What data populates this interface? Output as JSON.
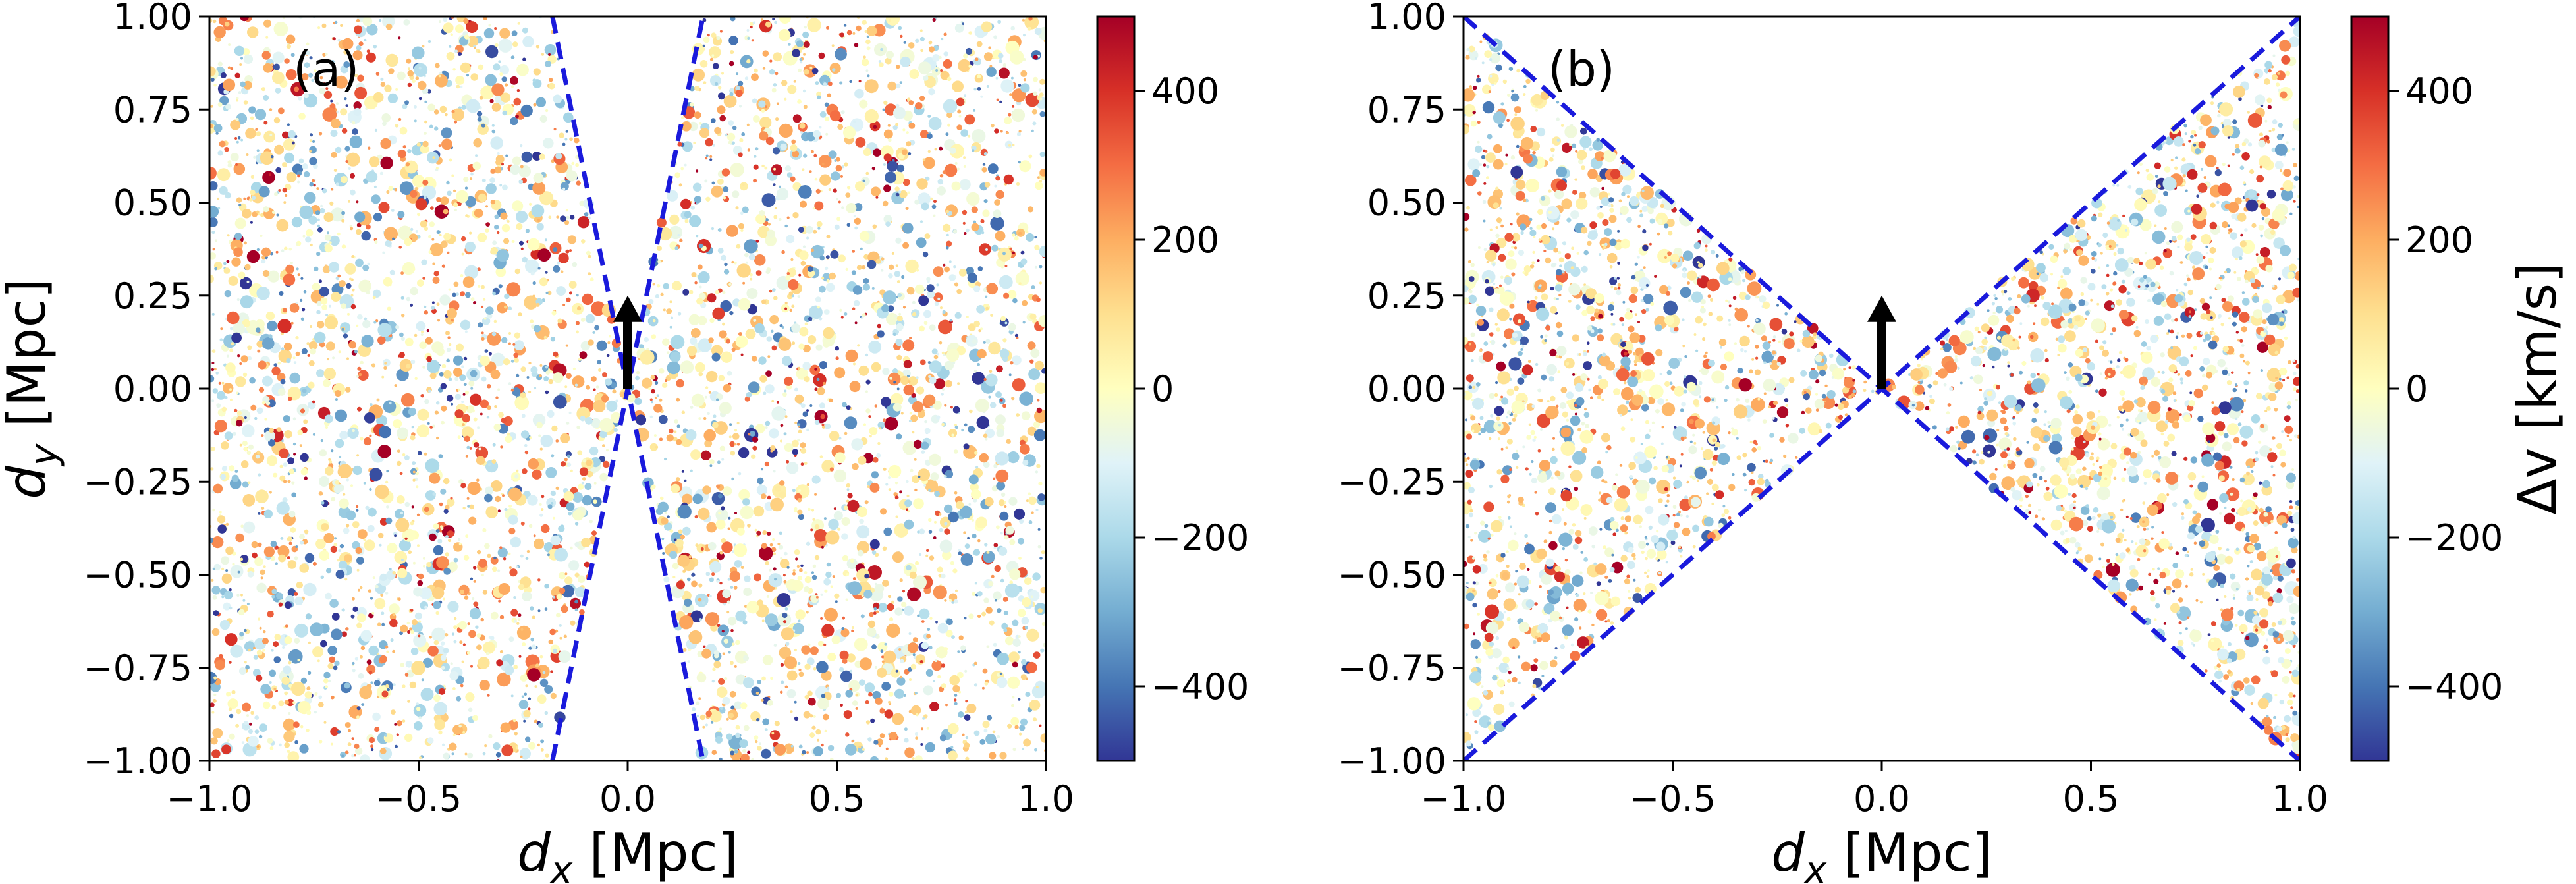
{
  "chart_data": [
    {
      "type": "scatter",
      "panel_label": "(a)",
      "xlabel_symbol": "d",
      "xlabel_sub": "x",
      "xlabel_unit": " [Mpc]",
      "ylabel_symbol": "d",
      "ylabel_sub": "y",
      "ylabel_unit": " [Mpc]",
      "xlim": [
        -1.0,
        1.0
      ],
      "ylim": [
        -1.0,
        1.0
      ],
      "xticks": [
        -1.0,
        -0.5,
        0.0,
        0.5,
        1.0
      ],
      "xtick_labels": [
        "−1.0",
        "−0.5",
        "0.0",
        "0.5",
        "1.0"
      ],
      "yticks": [
        -1.0,
        -0.75,
        -0.5,
        -0.25,
        0.0,
        0.25,
        0.5,
        0.75,
        1.0
      ],
      "ytick_labels": [
        "−1.00",
        "−0.75",
        "−0.50",
        "−0.25",
        "0.00",
        "0.25",
        "0.50",
        "0.75",
        "1.00"
      ],
      "boundary_lines": [
        {
          "x": [
            -0.18,
            0.18
          ],
          "y": [
            1.0,
            -1.0
          ],
          "style": "dashed",
          "color": "#1a1adc"
        },
        {
          "x": [
            -0.18,
            0.18
          ],
          "y": [
            -1.0,
            1.0
          ],
          "style": "dashed",
          "color": "#1a1adc"
        }
      ],
      "excluded_region": "narrow double wedge around the y-axis (|dx| < 0.18·|dy|)",
      "arrow": {
        "x": 0.0,
        "y_start": 0.0,
        "y_end": 0.25,
        "color": "#000000"
      },
      "points_note": "several thousand galaxies uniformly spread over the panel outside the wedge, coloured by Δv from −500 to 500 km/s",
      "colorbar": {
        "label": "",
        "range": [
          -500,
          500
        ],
        "ticks": [
          -400,
          -200,
          0,
          200,
          400
        ],
        "tick_labels": [
          "−400",
          "−200",
          "0",
          "200",
          "400"
        ],
        "colormap": "RdYlBu_r"
      }
    },
    {
      "type": "scatter",
      "panel_label": "(b)",
      "xlabel_symbol": "d",
      "xlabel_sub": "x",
      "xlabel_unit": " [Mpc]",
      "xlim": [
        -1.0,
        1.0
      ],
      "ylim": [
        -1.0,
        1.0
      ],
      "xticks": [
        -1.0,
        -0.5,
        0.0,
        0.5,
        1.0
      ],
      "xtick_labels": [
        "−1.0",
        "−0.5",
        "0.0",
        "0.5",
        "1.0"
      ],
      "yticks": [
        -1.0,
        -0.75,
        -0.5,
        -0.25,
        0.0,
        0.25,
        0.5,
        0.75,
        1.0
      ],
      "ytick_labels": [
        "−1.00",
        "−0.75",
        "−0.50",
        "−0.25",
        "0.00",
        "0.25",
        "0.50",
        "0.75",
        "1.00"
      ],
      "boundary_lines": [
        {
          "x": [
            -1.0,
            1.0
          ],
          "y": [
            1.0,
            -1.0
          ],
          "style": "dashed",
          "color": "#1a1adc"
        },
        {
          "x": [
            -1.0,
            1.0
          ],
          "y": [
            -1.0,
            1.0
          ],
          "style": "dashed",
          "color": "#1a1adc"
        }
      ],
      "included_region": "bow-tie wedge |dy| < |dx|",
      "arrow": {
        "x": 0.0,
        "y_start": 0.0,
        "y_end": 0.25,
        "color": "#000000"
      },
      "points_note": "galaxies only inside the horizontal bow-tie, coloured by Δv from −500 to 500 km/s",
      "colorbar": {
        "label": "Δv [km/s]",
        "range": [
          -500,
          500
        ],
        "ticks": [
          -400,
          -200,
          0,
          200,
          400
        ],
        "tick_labels": [
          "−400",
          "−200",
          "0",
          "200",
          "400"
        ],
        "colormap": "RdYlBu_r"
      }
    }
  ]
}
